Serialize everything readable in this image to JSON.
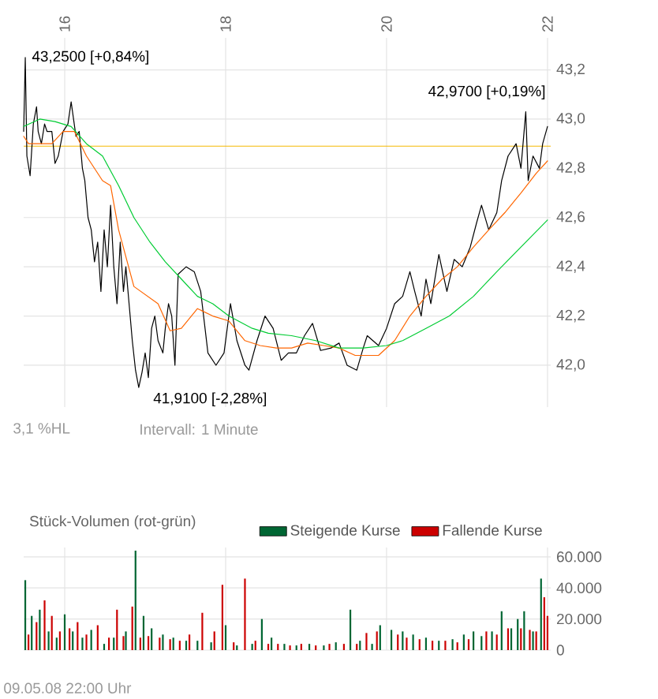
{
  "chart_data": [
    {
      "type": "line",
      "xlim": [
        15.49,
        22.04
      ],
      "ylim": [
        41.83,
        43.33
      ],
      "xticks": [
        16,
        18,
        20,
        22
      ],
      "yticks": [
        {
          "value": 42.0,
          "label": "42,0"
        },
        {
          "value": 42.2,
          "label": "42,2"
        },
        {
          "value": 42.4,
          "label": "42,4"
        },
        {
          "value": 42.6,
          "label": "42,6"
        },
        {
          "value": 42.8,
          "label": "42,8"
        },
        {
          "value": 43.0,
          "label": "43,0"
        },
        {
          "value": 43.2,
          "label": "43,2"
        }
      ],
      "grid": true,
      "ref_lines": [
        {
          "axis": "y",
          "value": 42.89,
          "color": "#f5b800"
        }
      ],
      "series": [
        {
          "color": "#000000",
          "x": [
            15.49,
            15.51,
            15.53,
            15.57,
            15.61,
            15.65,
            15.67,
            15.71,
            15.75,
            15.78,
            15.84,
            15.88,
            15.92,
            15.98,
            16.04,
            16.08,
            16.14,
            16.18,
            16.22,
            16.25,
            16.29,
            16.33,
            16.37,
            16.41,
            16.45,
            16.49,
            16.53,
            16.57,
            16.61,
            16.65,
            16.69,
            16.73,
            16.76,
            16.8,
            16.84,
            16.88,
            16.92,
            16.96,
            17.0,
            17.04,
            17.08,
            17.12,
            17.16,
            17.22,
            17.25,
            17.29,
            17.33,
            17.37,
            17.41,
            17.51,
            17.61,
            17.69,
            17.78,
            17.88,
            17.98,
            18.06,
            18.14,
            18.24,
            18.29,
            18.39,
            18.49,
            18.59,
            18.69,
            18.78,
            18.88,
            18.98,
            19.08,
            19.18,
            19.31,
            19.41,
            19.51,
            19.63,
            19.71,
            19.76,
            19.9,
            20.0,
            20.1,
            20.2,
            20.29,
            20.35,
            20.43,
            20.49,
            20.55,
            20.65,
            20.75,
            20.84,
            20.94,
            21.04,
            21.12,
            21.18,
            21.27,
            21.37,
            21.43,
            21.51,
            21.61,
            21.67,
            21.73,
            21.76,
            21.82,
            21.9,
            21.94,
            22.0
          ],
          "values": [
            42.95,
            43.25,
            42.85,
            42.77,
            42.98,
            43.05,
            42.95,
            42.9,
            42.98,
            42.95,
            42.95,
            42.82,
            42.85,
            42.95,
            42.98,
            43.07,
            42.93,
            42.95,
            42.8,
            42.75,
            42.6,
            42.55,
            42.42,
            42.5,
            42.3,
            42.55,
            42.4,
            42.65,
            42.4,
            42.25,
            42.5,
            42.3,
            42.4,
            42.25,
            42.1,
            41.98,
            41.91,
            41.97,
            42.05,
            41.95,
            42.15,
            42.2,
            42.1,
            42.05,
            42.15,
            42.25,
            42.2,
            42.0,
            42.37,
            42.4,
            42.38,
            42.3,
            42.05,
            42.0,
            42.05,
            42.25,
            42.1,
            42.0,
            41.98,
            42.1,
            42.2,
            42.15,
            42.02,
            42.05,
            42.05,
            42.12,
            42.17,
            42.06,
            42.07,
            42.09,
            42.0,
            41.98,
            42.07,
            42.12,
            42.08,
            42.15,
            42.25,
            42.28,
            42.38,
            42.3,
            42.2,
            42.35,
            42.25,
            42.45,
            42.3,
            42.43,
            42.4,
            42.48,
            42.58,
            42.65,
            42.55,
            42.62,
            42.75,
            42.85,
            42.9,
            42.8,
            43.03,
            42.75,
            42.85,
            42.8,
            42.9,
            42.97
          ]
        },
        {
          "color": "#ff6600",
          "x": [
            15.49,
            15.55,
            15.69,
            15.84,
            15.98,
            16.12,
            16.27,
            16.47,
            16.57,
            16.67,
            16.86,
            17.16,
            17.31,
            17.45,
            17.65,
            17.84,
            18.04,
            18.24,
            18.43,
            18.63,
            18.82,
            19.02,
            19.22,
            19.41,
            19.61,
            19.9,
            20.1,
            20.29,
            20.49,
            20.69,
            20.88,
            21.08,
            21.27,
            21.47,
            21.67,
            21.86,
            22.0
          ],
          "values": [
            42.93,
            42.9,
            42.9,
            42.9,
            42.95,
            42.95,
            42.85,
            42.75,
            42.73,
            42.55,
            42.32,
            42.25,
            42.14,
            42.15,
            42.23,
            42.2,
            42.18,
            42.1,
            42.08,
            42.07,
            42.07,
            42.09,
            42.08,
            42.07,
            42.04,
            42.04,
            42.1,
            42.2,
            42.28,
            42.35,
            42.4,
            42.48,
            42.55,
            42.62,
            42.7,
            42.78,
            42.83
          ]
        },
        {
          "color": "#00cc33",
          "x": [
            15.49,
            15.69,
            15.88,
            16.08,
            16.27,
            16.47,
            16.67,
            16.86,
            17.06,
            17.25,
            17.45,
            17.65,
            17.84,
            18.04,
            18.33,
            18.53,
            18.82,
            19.12,
            19.41,
            19.71,
            20.0,
            20.2,
            20.49,
            20.78,
            21.08,
            21.37,
            21.67,
            22.0
          ],
          "values": [
            42.97,
            43.0,
            42.99,
            42.97,
            42.9,
            42.85,
            42.73,
            42.6,
            42.5,
            42.42,
            42.35,
            42.28,
            42.25,
            42.2,
            42.15,
            42.13,
            42.12,
            42.1,
            42.07,
            42.07,
            42.08,
            42.1,
            42.15,
            42.2,
            42.28,
            42.38,
            42.48,
            42.59
          ]
        }
      ],
      "annotations": [
        {
          "text": "43,2500 [+0,84%]",
          "x": 15.49,
          "y": 43.25
        },
        {
          "text": "41,9100 [-2,28%]",
          "x": 16.92,
          "y": 41.91
        },
        {
          "text": "42,9700 [+0,19%]",
          "x": 22.0,
          "y": 42.97
        },
        "3,1 %HL",
        "Intervall: 1 Minute"
      ]
    },
    {
      "type": "bar",
      "title": "Stück-Volumen (rot-grün)",
      "xlim": [
        15.49,
        22.04
      ],
      "ylim": [
        0,
        66000
      ],
      "xticks": [
        {
          "value": 16,
          "label": null
        },
        {
          "value": 18,
          "label": null
        },
        {
          "value": 20,
          "label": null
        },
        {
          "value": 22,
          "label": null
        }
      ],
      "yticks": [
        0,
        {
          "value": 20000,
          "label": "20.000"
        },
        {
          "value": 40000,
          "label": "40.000"
        },
        {
          "value": 60000,
          "label": "60.000"
        }
      ],
      "tick_labels": "y",
      "grid": true,
      "legend": "top right",
      "series": [
        {
          "name": "Steigende Kurse",
          "color": "#006633",
          "x": [
            15.51,
            15.59,
            15.69,
            15.8,
            15.9,
            16.0,
            16.1,
            16.22,
            16.33,
            16.49,
            16.61,
            16.76,
            16.88,
            16.98,
            17.08,
            17.22,
            17.35,
            17.51,
            17.65,
            17.82,
            18.0,
            18.14,
            18.33,
            18.45,
            18.57,
            18.73,
            18.88,
            19.04,
            19.22,
            19.37,
            19.55,
            19.67,
            19.82,
            19.92,
            20.06,
            20.2,
            20.33,
            20.49,
            20.65,
            20.82,
            20.96,
            21.08,
            21.18,
            21.31,
            21.43,
            21.55,
            21.63,
            21.71,
            21.82,
            21.92
          ],
          "values": [
            45000,
            22000,
            26000,
            12000,
            8000,
            23000,
            12000,
            8000,
            13000,
            4000,
            8000,
            12000,
            64000,
            22000,
            14000,
            10000,
            8000,
            6000,
            6000,
            5000,
            16000,
            3000,
            4000,
            20000,
            8000,
            4000,
            3000,
            4000,
            3000,
            5000,
            26000,
            6000,
            4000,
            16000,
            13000,
            12000,
            10000,
            8000,
            6000,
            7000,
            10000,
            12000,
            9000,
            12000,
            25000,
            14000,
            20000,
            25000,
            12000,
            46000
          ]
        },
        {
          "name": "Fallende Kurse",
          "color": "#cc0000",
          "x": [
            15.55,
            15.65,
            15.75,
            15.84,
            15.94,
            16.06,
            16.16,
            16.27,
            16.41,
            16.55,
            16.65,
            16.73,
            16.84,
            16.94,
            17.04,
            17.18,
            17.31,
            17.43,
            17.55,
            17.71,
            17.86,
            17.96,
            18.1,
            18.24,
            18.37,
            18.53,
            18.65,
            18.8,
            18.94,
            19.12,
            19.29,
            19.47,
            19.63,
            19.75,
            19.88,
            20.14,
            20.25,
            20.41,
            20.57,
            20.73,
            20.88,
            21.02,
            21.24,
            21.37,
            21.51,
            21.67,
            21.78,
            21.86,
            21.96,
            22.0
          ],
          "values": [
            10000,
            18000,
            32000,
            22000,
            12000,
            14000,
            18000,
            10000,
            16000,
            8000,
            26000,
            9000,
            28000,
            8000,
            9000,
            8000,
            7000,
            6000,
            10000,
            24000,
            12000,
            42000,
            5000,
            46000,
            6000,
            4000,
            4000,
            3000,
            4000,
            3000,
            4000,
            4000,
            4000,
            11000,
            12000,
            10000,
            8000,
            7000,
            6000,
            6000,
            5000,
            7000,
            12000,
            10000,
            14000,
            14000,
            13000,
            12000,
            34000,
            22000
          ]
        }
      ],
      "annotations": [
        "09.05.08   22:00 Uhr"
      ]
    }
  ]
}
